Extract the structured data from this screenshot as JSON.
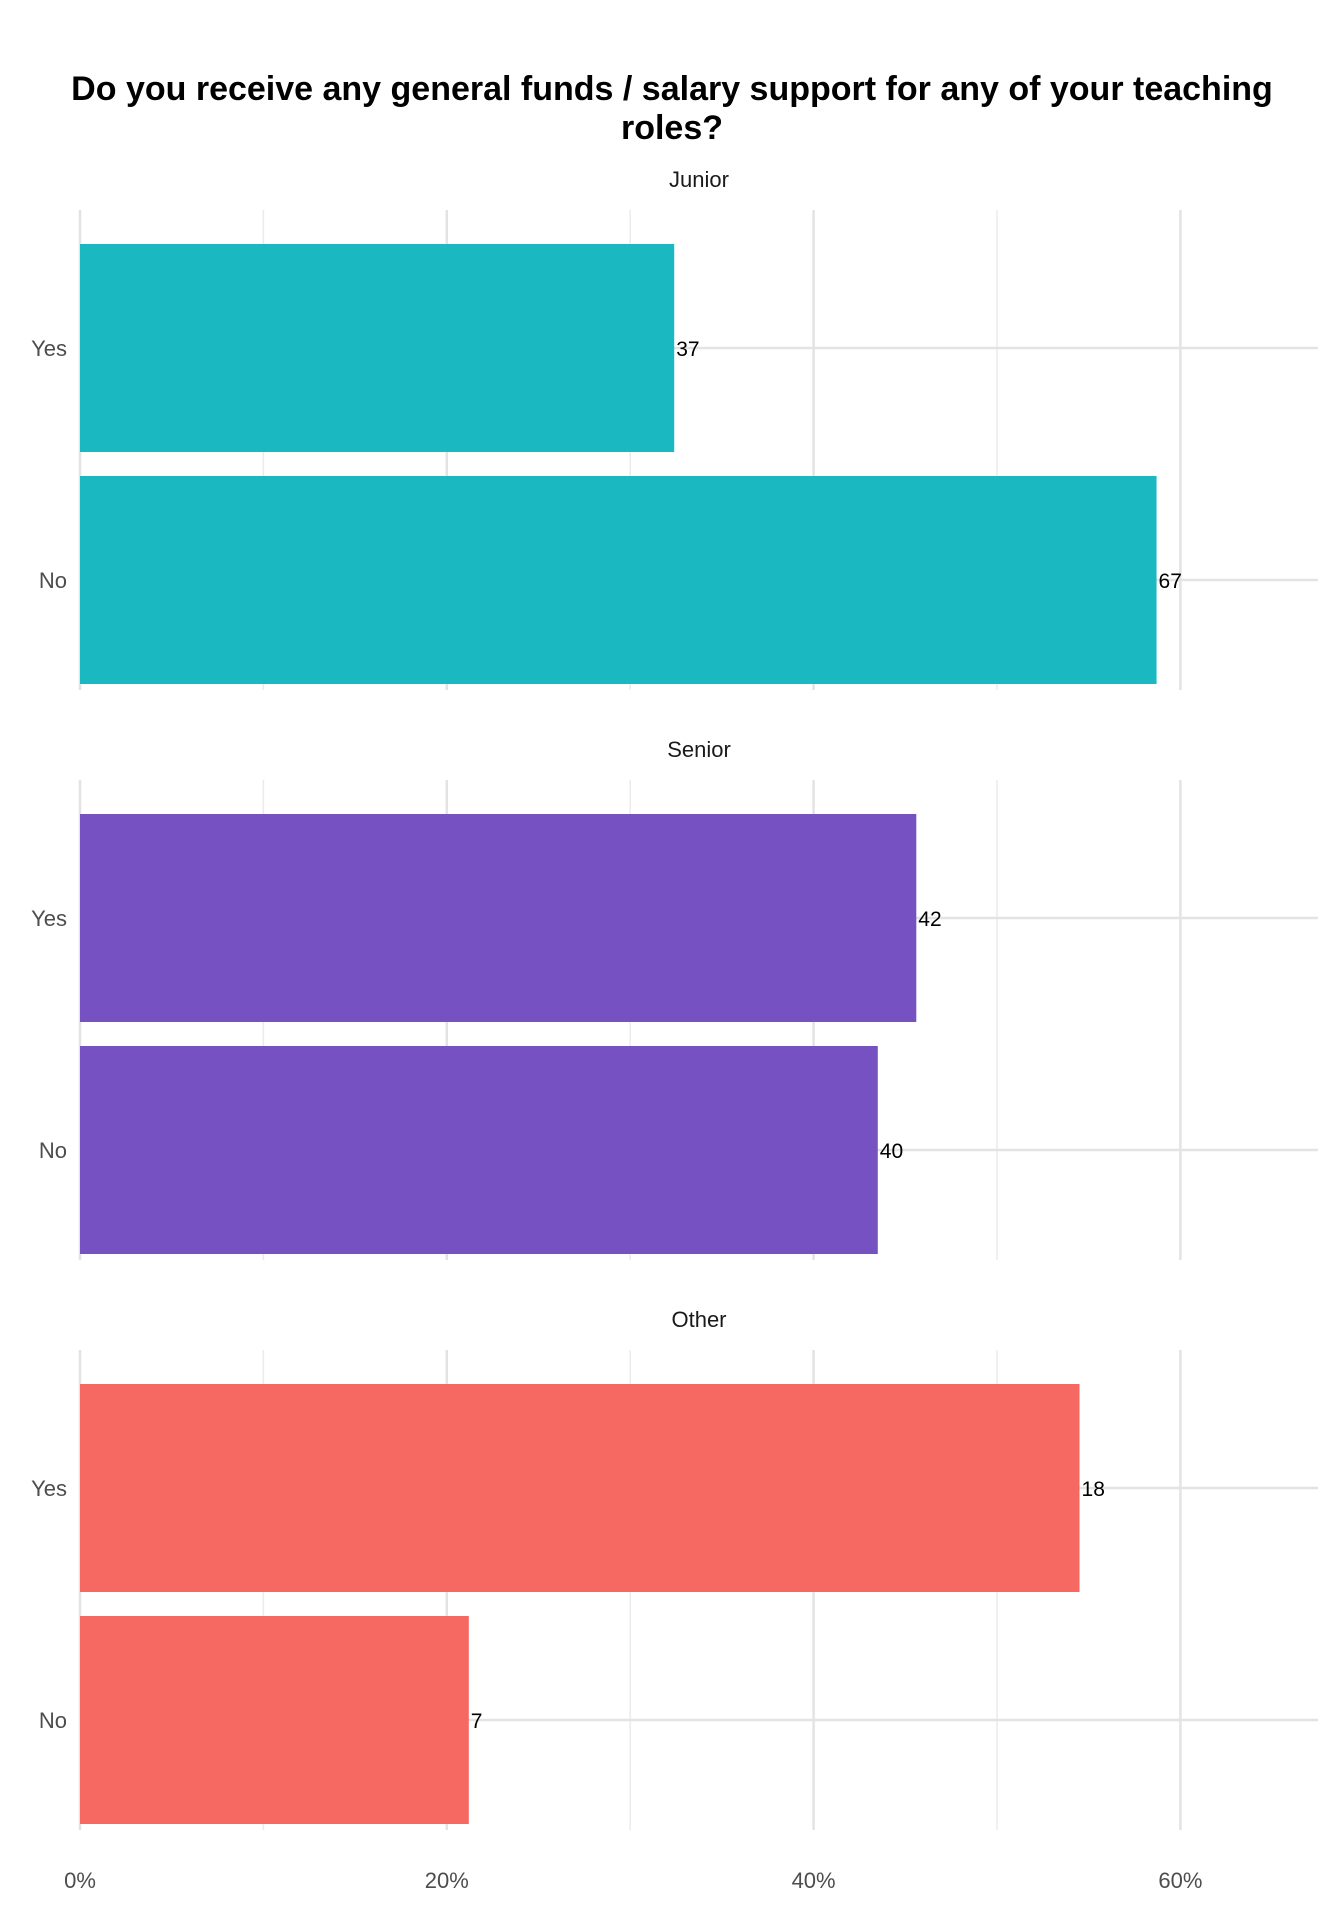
{
  "chart_data": {
    "type": "bar",
    "orientation": "horizontal",
    "title_lines": [
      "Do you receive any general funds / salary support for any of your teaching",
      "roles?"
    ],
    "categories": [
      "Yes",
      "No"
    ],
    "xlim": [
      0,
      0.675
    ],
    "x_ticks": [
      0,
      0.2,
      0.4,
      0.6
    ],
    "x_tick_labels": [
      "0%",
      "20%",
      "40%",
      "60%"
    ],
    "grid": true,
    "legend": "none",
    "panels": [
      {
        "name": "Junior",
        "color": "#1AB9C2",
        "bars": [
          {
            "category": "Yes",
            "percent": 0.324,
            "label": "37"
          },
          {
            "category": "No",
            "percent": 0.587,
            "label": "67"
          }
        ]
      },
      {
        "name": "Senior",
        "color": "#7551C1",
        "bars": [
          {
            "category": "Yes",
            "percent": 0.456,
            "label": "42"
          },
          {
            "category": "No",
            "percent": 0.435,
            "label": "40"
          }
        ]
      },
      {
        "name": "Other",
        "color": "#F56962",
        "bars": [
          {
            "category": "Yes",
            "percent": 0.545,
            "label": "18"
          },
          {
            "category": "No",
            "percent": 0.212,
            "label": "7"
          }
        ]
      }
    ]
  }
}
